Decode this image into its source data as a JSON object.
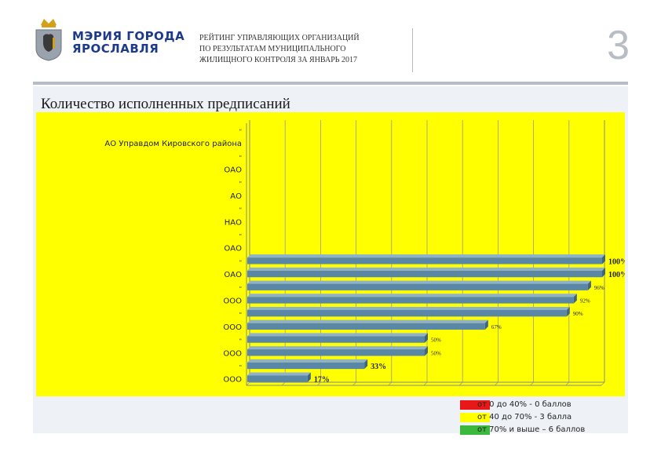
{
  "header": {
    "org_line1": "МЭРИЯ ГОРОДА",
    "org_line2": "ЯРОСЛАВЛЯ",
    "report_title_lines": [
      "РЕЙТИНГ УПРАВЛЯЮЩИХ ОРГАНИЗАЦИЙ",
      "ПО РЕЗУЛЬТАТАМ МУНИЦИПАЛЬНОГО",
      "ЖИЛИЩНОГО КОНТРОЛЯ ЗА ЯНВАРЬ 2017"
    ],
    "page_number": "3"
  },
  "section_title": "Количество исполненных предписаний",
  "colors": {
    "chart_background": "#ffff00",
    "bar": "#5b87a6",
    "bar_top": "#8fb2c9",
    "red": "#e81818",
    "yellow": "#ffff00",
    "green": "#3cb83c",
    "brand_blue": "#1d3a8a"
  },
  "chart_data": {
    "type": "bar",
    "orientation": "horizontal",
    "grid": true,
    "xlim": [
      0,
      100
    ],
    "categories": [
      "\"",
      "АО Управдом Кировского района",
      "\"",
      "ОАО",
      "\"",
      "АО",
      "\"",
      "НАО",
      "\"",
      "ОАО",
      "\"",
      "ОАО",
      "\"",
      "ООО",
      "\"",
      "ООО",
      "\"",
      "ООО",
      "\"",
      "ООО"
    ],
    "values": [
      null,
      null,
      null,
      null,
      null,
      null,
      null,
      null,
      null,
      null,
      100,
      100,
      96,
      92,
      90,
      67,
      50,
      50,
      33,
      17
    ],
    "data_labels": [
      "",
      "",
      "",
      "",
      "",
      "",
      "",
      "",
      "",
      "",
      "100%",
      "100%",
      "96%",
      "92%",
      "90%",
      "67%",
      "50%",
      "50%",
      "33%",
      "17%"
    ]
  },
  "legend": [
    {
      "label": "от 0 до 40% - 0 баллов",
      "color": "#e81818"
    },
    {
      "label": "от 40 до 70% - 3 балла",
      "color": "#ffff00"
    },
    {
      "label": "от 70% и выше – 6 баллов",
      "color": "#3cb83c"
    }
  ]
}
